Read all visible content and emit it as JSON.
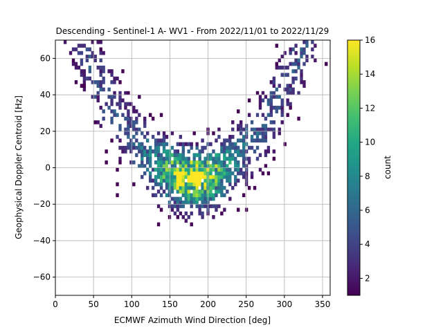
{
  "chart_data": {
    "type": "heatmap",
    "title": "Descending - Sentinel-1 A- WV1 - From 2022/11/01 to 2022/11/29",
    "xlabel": "ECMWF Azimuth Wind Direction [deg]",
    "ylabel": "Geophysical Doppler Centroid [Hz]",
    "xlim": [
      0,
      360
    ],
    "ylim": [
      -70,
      70
    ],
    "xticks": [
      0,
      50,
      100,
      150,
      200,
      250,
      300,
      350
    ],
    "yticks": [
      -60,
      -40,
      -20,
      0,
      20,
      40,
      60
    ],
    "grid": true,
    "colorbar": {
      "label": "count",
      "colormap": "viridis",
      "range": [
        1,
        16
      ],
      "ticks": [
        2,
        4,
        6,
        8,
        10,
        12,
        14,
        16
      ]
    },
    "bin_size": {
      "x": 3.6,
      "y": 2.0
    },
    "approximate_distribution": {
      "ridge_description": "V-shaped cloud of counts, minimum near 180 deg, rising toward 0 and 360 deg",
      "ridge_points": [
        {
          "x": 0,
          "y": 45
        },
        {
          "x": 50,
          "y": 30
        },
        {
          "x": 100,
          "y": 15
        },
        {
          "x": 150,
          "y": 0
        },
        {
          "x": 180,
          "y": -5
        },
        {
          "x": 210,
          "y": 0
        },
        {
          "x": 250,
          "y": 15
        },
        {
          "x": 300,
          "y": 30
        },
        {
          "x": 360,
          "y": 45
        }
      ],
      "peak": {
        "x": 185,
        "y": -5,
        "count": 16
      }
    }
  }
}
